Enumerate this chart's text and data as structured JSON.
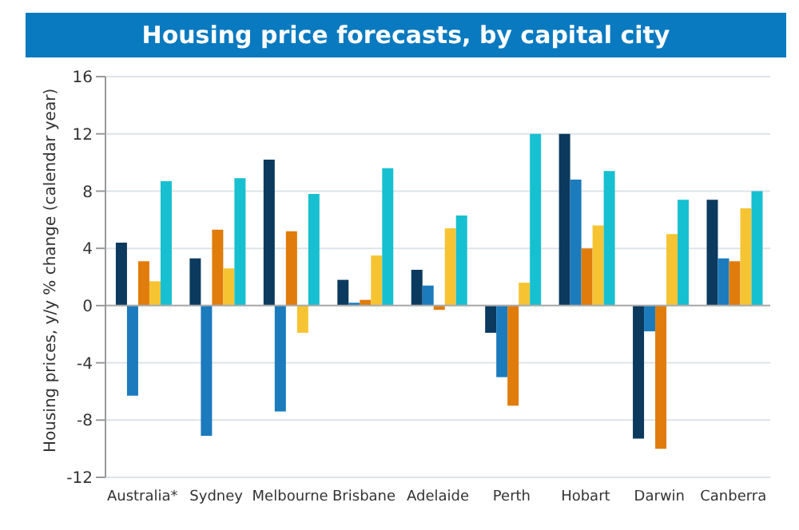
{
  "chart_data": {
    "type": "bar",
    "title": "Housing price forecasts, by capital city",
    "ylabel": "Housing prices, y/y % change (calendar year)",
    "categories": [
      "Australia*",
      "Sydney",
      "Melbourne",
      "Brisbane",
      "Adelaide",
      "Perth",
      "Hobart",
      "Darwin",
      "Canberra"
    ],
    "series": [
      {
        "color": "#0b3a5e",
        "values": [
          4.4,
          3.3,
          10.2,
          1.8,
          2.5,
          -1.9,
          12.0,
          -9.3,
          7.4
        ]
      },
      {
        "color": "#1b7bbd",
        "values": [
          -6.3,
          -9.1,
          -7.4,
          0.2,
          1.4,
          -5.0,
          8.8,
          -1.8,
          3.3
        ]
      },
      {
        "color": "#e07c0c",
        "values": [
          3.1,
          5.3,
          5.2,
          0.4,
          -0.3,
          -7.0,
          4.0,
          -10.0,
          3.1
        ]
      },
      {
        "color": "#f6c433",
        "values": [
          1.7,
          2.6,
          -1.9,
          3.5,
          5.4,
          1.6,
          5.6,
          5.0,
          6.8
        ]
      },
      {
        "color": "#17c0d0",
        "values": [
          8.7,
          8.9,
          7.8,
          9.6,
          6.3,
          12.0,
          9.4,
          7.4,
          8.0
        ]
      }
    ],
    "ylim": [
      -12,
      16
    ],
    "yticks": [
      -12,
      -8,
      -4,
      0,
      4,
      8,
      12,
      16
    ],
    "grid": "y"
  }
}
